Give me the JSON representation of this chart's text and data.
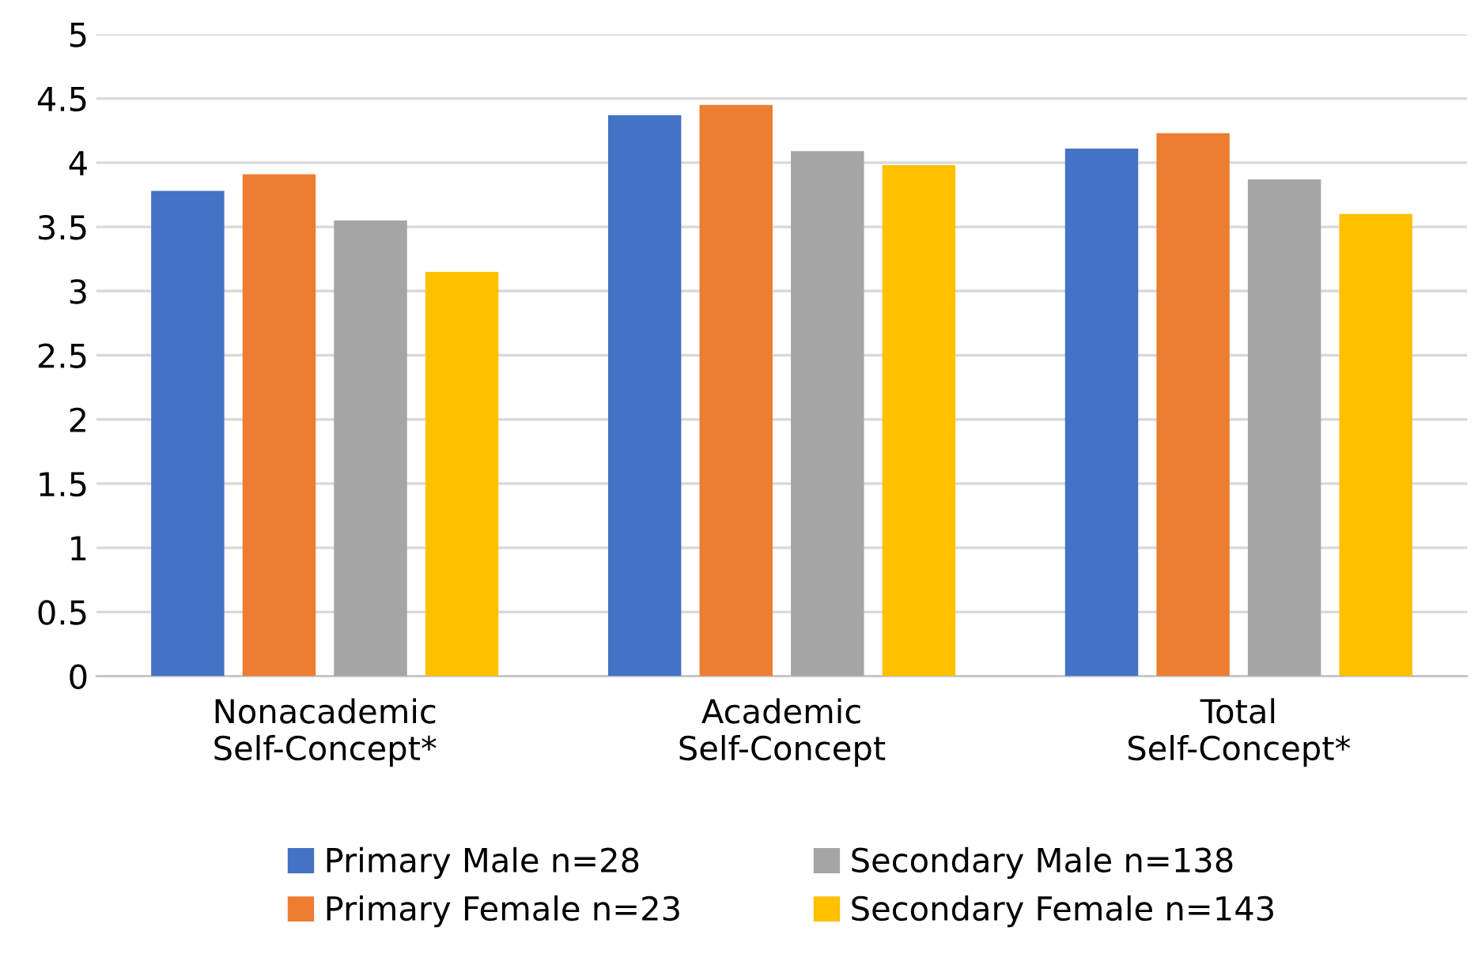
{
  "chart_data": {
    "type": "bar",
    "categories": [
      "Nonacademic\nSelf-Concept*",
      "Academic\nSelf-Concept",
      "Total\nSelf-Concept*"
    ],
    "series": [
      {
        "name": "Primary Male n=28",
        "color": "#4472c4",
        "values": [
          3.78,
          4.37,
          4.11
        ]
      },
      {
        "name": "Primary Female n=23",
        "color": "#ed7d31",
        "values": [
          3.91,
          4.45,
          4.23
        ]
      },
      {
        "name": "Secondary Male n=138",
        "color": "#a5a5a5",
        "values": [
          3.55,
          4.09,
          3.87
        ]
      },
      {
        "name": "Secondary Female n=143",
        "color": "#ffc000",
        "values": [
          3.15,
          3.98,
          3.6
        ]
      }
    ],
    "ylim": [
      0,
      5
    ],
    "yticks": [
      0,
      0.5,
      1,
      1.5,
      2,
      2.5,
      3,
      3.5,
      4,
      4.5,
      5
    ],
    "grid": "y",
    "legend": "bottom"
  }
}
